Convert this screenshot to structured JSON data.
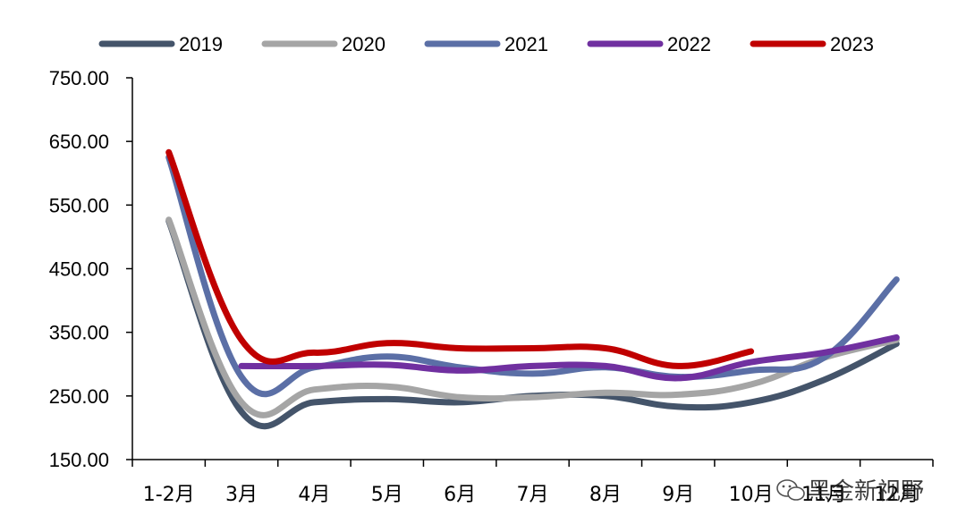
{
  "chart_data": {
    "type": "line",
    "title": "",
    "xlabel": "",
    "ylabel": "",
    "categories": [
      "1-2月",
      "3月",
      "4月",
      "5月",
      "6月",
      "7月",
      "8月",
      "9月",
      "10月",
      "11月",
      "12月"
    ],
    "ylim": [
      150,
      750
    ],
    "yticks": [
      150,
      250,
      350,
      450,
      550,
      650,
      750
    ],
    "ytick_labels": [
      "150.00",
      "250.00",
      "350.00",
      "450.00",
      "550.00",
      "650.00",
      "750.00"
    ],
    "legend_position": "top",
    "series": [
      {
        "name": "2019",
        "color": "#44546a",
        "values": [
          525,
          225,
          240,
          245,
          240,
          250,
          250,
          233,
          240,
          275,
          332
        ]
      },
      {
        "name": "2020",
        "color": "#a5a5a5",
        "values": [
          527,
          240,
          260,
          265,
          248,
          248,
          255,
          252,
          268,
          310,
          338
        ]
      },
      {
        "name": "2021",
        "color": "#5b6fa6",
        "values": [
          625,
          280,
          295,
          312,
          295,
          285,
          295,
          280,
          290,
          310,
          433
        ]
      },
      {
        "name": "2022",
        "color": "#7030a0",
        "values": [
          null,
          297,
          297,
          299,
          290,
          297,
          297,
          278,
          303,
          318,
          342
        ]
      },
      {
        "name": "2023",
        "color": "#c00000",
        "values": [
          633,
          338,
          318,
          333,
          325,
          325,
          325,
          297,
          320,
          null,
          null
        ]
      }
    ]
  },
  "watermark": {
    "icon": "wechat-icon",
    "text": "黑金新视野"
  }
}
